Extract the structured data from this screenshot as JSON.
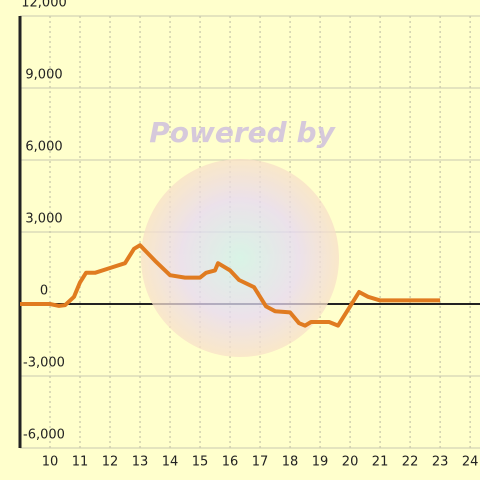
{
  "chart_data": {
    "type": "line",
    "watermark": "Powered by",
    "x": [
      9,
      9.5,
      10,
      10.3,
      10.5,
      10.8,
      11,
      11.2,
      11.5,
      12,
      12.5,
      12.8,
      13,
      13.5,
      14,
      14.5,
      15,
      15.2,
      15.5,
      15.6,
      16,
      16.3,
      16.8,
      17,
      17.2,
      17.5,
      18,
      18.3,
      18.5,
      18.7,
      19.3,
      19.6,
      20,
      20.3,
      20.6,
      21,
      22,
      23
    ],
    "series": [
      {
        "color": "#e07b20",
        "values": [
          0,
          0,
          0,
          -80,
          -50,
          300,
          900,
          1300,
          1300,
          1500,
          1700,
          2300,
          2450,
          1800,
          1200,
          1100,
          1100,
          1300,
          1400,
          1700,
          1400,
          1000,
          700,
          300,
          -100,
          -300,
          -350,
          -800,
          -900,
          -750,
          -750,
          -900,
          -100,
          500,
          300,
          150,
          150,
          150
        ]
      }
    ],
    "xlim": [
      9,
      24.33
    ],
    "xticks": [
      10,
      11,
      12,
      13,
      14,
      15,
      16,
      17,
      18,
      19,
      20,
      21,
      22,
      23,
      24
    ],
    "ylim": [
      -6000,
      12000
    ],
    "yticks": [
      {
        "value": 12000,
        "label": "12,000"
      },
      {
        "value": 9000,
        "label": "9,000"
      },
      {
        "value": 6000,
        "label": "6,000"
      },
      {
        "value": 3000,
        "label": "3,000"
      },
      0,
      {
        "value": -3000,
        "label": "-3,000"
      },
      {
        "value": -6000,
        "label": "-6,000"
      }
    ],
    "grid": true
  }
}
